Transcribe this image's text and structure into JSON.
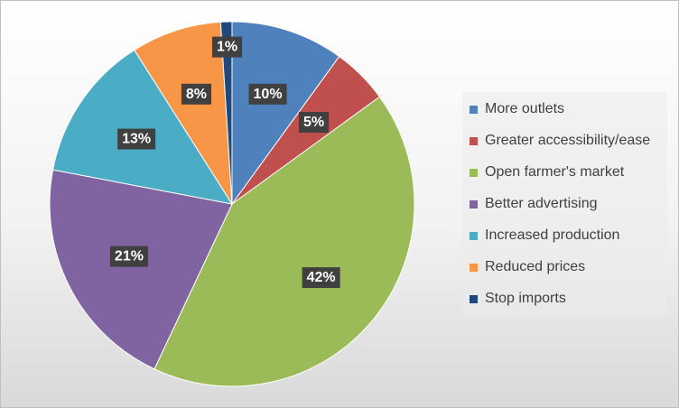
{
  "chart_data": {
    "type": "pie",
    "title": "",
    "categories": [
      "More outlets",
      "Greater accessibility/ease",
      "Open farmer's market",
      "Better advertising",
      "Increased production",
      "Reduced prices",
      "Stop imports"
    ],
    "values": [
      10,
      5,
      42,
      21,
      13,
      8,
      1
    ],
    "data_labels": [
      "10%",
      "5%",
      "42%",
      "21%",
      "13%",
      "8%",
      "1%"
    ],
    "colors": [
      "#4f81bd",
      "#c0504d",
      "#9bbb59",
      "#8064a2",
      "#4bacc6",
      "#f79646",
      "#1f497d"
    ],
    "legend_position": "right",
    "start_angle_deg": 0,
    "direction": "clockwise"
  }
}
